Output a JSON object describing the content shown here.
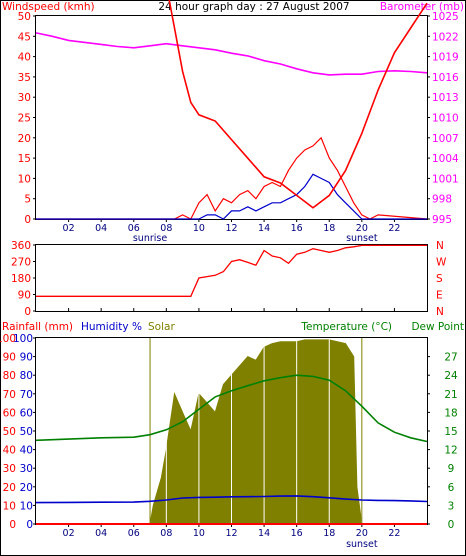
{
  "chart_data": [
    {
      "type": "line",
      "title": "24 hour graph day : 27 August 2007",
      "left_axis_label": "Windspeed (kmh)",
      "right_axis_label": "Barometer (mb)",
      "x_ticks": [
        "02",
        "04",
        "06",
        "08",
        "10",
        "12",
        "14",
        "16",
        "18",
        "20",
        "22"
      ],
      "x_hours": [
        2,
        4,
        6,
        8,
        10,
        12,
        14,
        16,
        18,
        20,
        22
      ],
      "sunrise_label": "sunrise",
      "sunset_label": "sunset",
      "sunrise_hour": 7.0,
      "sunset_hour": 20.0,
      "y_left_ticks": [
        "0",
        "5",
        "10",
        "15",
        "20",
        "25",
        "30",
        "35",
        "40",
        "45",
        "50"
      ],
      "y_left_range": [
        0,
        50
      ],
      "y_right_ticks": [
        "995",
        "998",
        "1001",
        "1004",
        "1007",
        "1010",
        "1013",
        "1016",
        "1019",
        "1022",
        "1025"
      ],
      "y_right_range": [
        995,
        1025
      ],
      "colors": {
        "wind_gust": "#ff0000",
        "wind_avg": "#0000cc",
        "barometer": "#ff00ff",
        "left_axis": "#ff0000",
        "right_axis": "#ff00ff"
      },
      "series": [
        {
          "name": "Barometer (mb)",
          "axis": "right",
          "x": [
            0,
            1,
            2,
            3,
            4,
            5,
            6,
            7,
            8,
            9,
            10,
            11,
            12,
            13,
            14,
            15,
            16,
            17,
            18,
            19,
            20,
            21,
            22,
            23,
            24
          ],
          "y": [
            1022.5,
            1022.0,
            1021.4,
            1021.1,
            1020.8,
            1020.5,
            1020.3,
            1020.6,
            1020.9,
            1020.6,
            1020.3,
            1020.0,
            1019.5,
            1019.1,
            1018.4,
            1017.9,
            1017.2,
            1016.6,
            1016.3,
            1016.4,
            1016.4,
            1016.8,
            1016.9,
            1016.8,
            1016.6
          ]
        },
        {
          "name": "Wind gust (kmh)",
          "axis": "left",
          "x": [
            0,
            8.5,
            9,
            9.5,
            10,
            10.5,
            11,
            11.5,
            12,
            12.5,
            13,
            13.5,
            14,
            14.5,
            15,
            15.5,
            16,
            16.5,
            17,
            17.5,
            18,
            18.5,
            19,
            19.5,
            20,
            20.5,
            21,
            24
          ],
          "y": [
            0,
            0,
            1,
            0,
            4,
            6,
            2,
            5,
            4,
            6,
            7,
            5,
            8,
            9,
            8,
            12,
            15,
            17,
            18,
            20,
            15,
            12,
            8,
            4,
            1,
            0,
            1,
            0
          ]
        },
        {
          "name": "Wind average (kmh)",
          "axis": "left",
          "x": [
            0,
            10,
            10.5,
            11,
            11.5,
            12,
            12.5,
            13,
            13.5,
            14,
            14.5,
            15,
            15.5,
            16,
            16.5,
            17,
            17.5,
            18,
            18.5,
            19,
            19.5,
            20,
            24
          ],
          "y": [
            0,
            0,
            1,
            1,
            0,
            2,
            2,
            3,
            2,
            3,
            4,
            4,
            5,
            6,
            8,
            11,
            10,
            9,
            6,
            4,
            2,
            0,
            0
          ]
        }
      ]
    },
    {
      "type": "line",
      "title": "",
      "right_axis_compass": [
        "N",
        "W",
        "S",
        "E",
        "N"
      ],
      "y_left_ticks": [
        "0",
        "90",
        "180",
        "270",
        "360"
      ],
      "y_left_range": [
        0,
        360
      ],
      "colors": {
        "direction": "#ff0000"
      },
      "series": [
        {
          "name": "Wind direction (degrees)",
          "x": [
            0,
            9.5,
            10,
            11,
            11.5,
            12,
            12.5,
            13,
            13.5,
            14,
            14.5,
            15,
            15.5,
            16,
            16.5,
            17,
            17.5,
            18,
            18.5,
            19,
            19.5,
            20,
            24
          ],
          "y": [
            80,
            80,
            180,
            195,
            215,
            270,
            280,
            265,
            250,
            330,
            300,
            290,
            260,
            310,
            320,
            340,
            330,
            320,
            330,
            345,
            350,
            358,
            358
          ]
        }
      ]
    },
    {
      "type": "line",
      "title": "",
      "legend": [
        "Rainfall (mm)",
        "Humidity %",
        "Solar",
        "Temperature (°C)",
        "Dew Point"
      ],
      "y_left_ticks": [
        "0",
        "3",
        "6",
        "9",
        "12",
        "15",
        "18",
        "21",
        "24",
        "27",
        "30"
      ],
      "y_left_ticks_humidity": [
        "0",
        "10",
        "20",
        "30",
        "40",
        "50",
        "60",
        "70",
        "80",
        "90",
        "100"
      ],
      "y_left_range": [
        0,
        100
      ],
      "y_right_ticks": [
        "0",
        "3",
        "6",
        "9",
        "12",
        "15",
        "18",
        "21",
        "24",
        "27"
      ],
      "y_right_range": [
        0,
        30
      ],
      "colors": {
        "rainfall": "#ff0000",
        "humidity": "#0000cc",
        "solar": "#808000",
        "temperature": "#ff0000",
        "dewpoint": "#008000"
      },
      "series": [
        {
          "name": "Humidity %",
          "axis": "left",
          "x": [
            0,
            1,
            2,
            3,
            4,
            5,
            6,
            7,
            8,
            8.5,
            9,
            9.5,
            10,
            11,
            12,
            13,
            14,
            15,
            16,
            17,
            18,
            19,
            20,
            21,
            22,
            23,
            24
          ],
          "y": [
            85,
            85,
            86,
            88,
            89,
            90,
            91,
            90,
            87,
            80,
            73,
            68,
            66,
            65,
            62,
            59,
            56,
            55,
            53,
            51,
            53,
            57,
            63,
            70,
            76,
            80,
            84
          ]
        },
        {
          "name": "Temperature (°C)",
          "axis": "right",
          "x": [
            0,
            2,
            4,
            6,
            7,
            8,
            9,
            10,
            11,
            12,
            13,
            14,
            15,
            16,
            17,
            18,
            19,
            20,
            21,
            22,
            23,
            24
          ],
          "y": [
            11.5,
            11.6,
            11.7,
            11.8,
            12.2,
            12.9,
            14.0,
            14.3,
            14.4,
            14.6,
            14.7,
            14.8,
            15.0,
            15.1,
            14.7,
            14.1,
            13.4,
            12.9,
            12.7,
            12.6,
            12.4,
            12.1
          ]
        },
        {
          "name": "Dew Point",
          "axis": "right",
          "x": [
            0,
            2,
            4,
            6,
            7,
            8,
            9,
            10,
            11,
            12,
            13,
            14,
            15,
            16,
            17,
            18,
            19,
            20,
            21,
            22,
            23,
            24
          ],
          "y": [
            13.5,
            13.7,
            13.9,
            14.0,
            14.4,
            15.2,
            16.5,
            18.5,
            20.5,
            21.5,
            22.3,
            23.1,
            23.6,
            24.0,
            23.8,
            23.2,
            21.5,
            19.0,
            16.3,
            14.8,
            13.9,
            13.3
          ]
        },
        {
          "name": "Rainfall (mm)",
          "axis": "left",
          "x": [
            0,
            24
          ],
          "y": [
            0,
            0
          ]
        },
        {
          "name": "Solar",
          "axis": "left",
          "x": [
            0,
            7.0,
            7.2,
            7.7,
            8,
            8.5,
            9,
            9.5,
            10,
            10.5,
            11,
            11.5,
            12,
            12.5,
            13,
            13.5,
            14,
            14.5,
            15,
            15.5,
            16,
            16.5,
            17,
            17.5,
            18,
            18.5,
            19,
            19.5,
            19.7,
            20,
            24
          ],
          "y": [
            0,
            0,
            10,
            25,
            40,
            70,
            60,
            50,
            70,
            65,
            60,
            75,
            80,
            85,
            90,
            88,
            95,
            97,
            98,
            98,
            98,
            99,
            99,
            99,
            99,
            98,
            97,
            90,
            20,
            0,
            0
          ]
        }
      ]
    }
  ]
}
